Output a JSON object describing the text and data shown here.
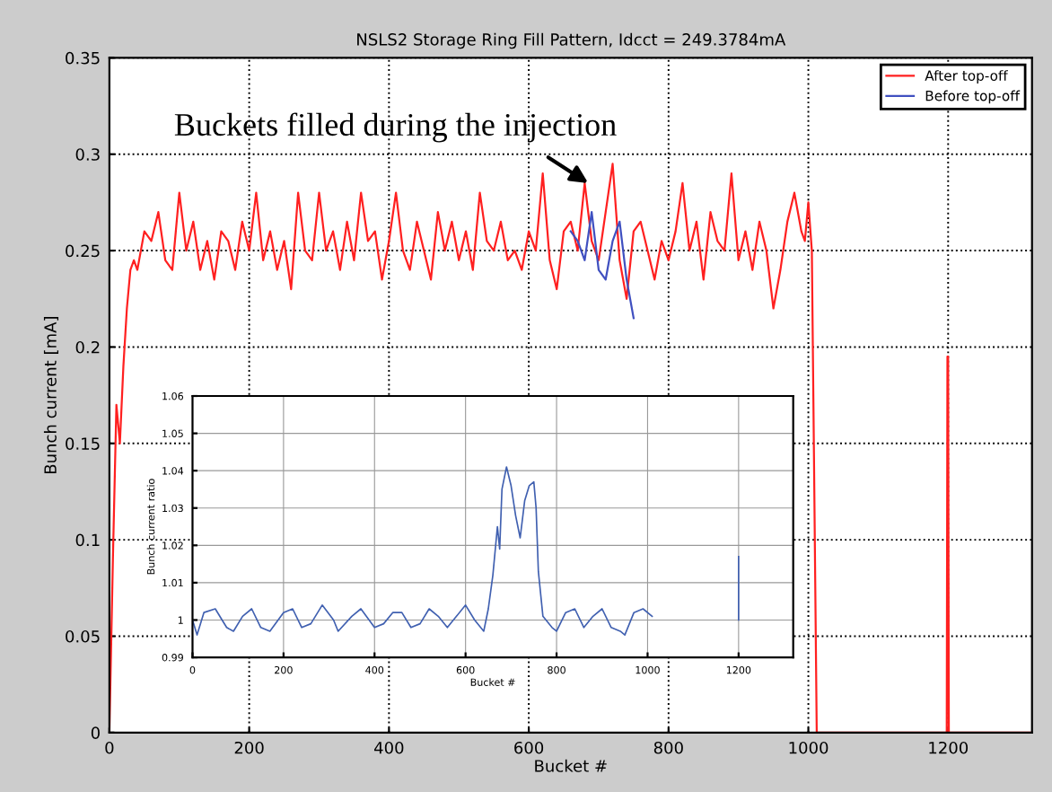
{
  "chart_data": [
    {
      "type": "line",
      "title": "NSLS2 Storage Ring Fill Pattern, Idcct = 249.3784mA",
      "xlabel": "Bucket #",
      "ylabel": "Bunch current [mA]",
      "x": [
        0,
        5,
        10,
        15,
        20,
        25,
        30,
        35,
        40,
        50,
        60,
        70,
        80,
        90,
        100,
        110,
        120,
        130,
        140,
        150,
        160,
        170,
        180,
        190,
        200,
        210,
        220,
        230,
        240,
        250,
        260,
        270,
        280,
        290,
        300,
        310,
        320,
        330,
        340,
        350,
        360,
        370,
        380,
        390,
        400,
        410,
        420,
        430,
        440,
        450,
        460,
        470,
        480,
        490,
        500,
        510,
        520,
        530,
        540,
        550,
        560,
        570,
        580,
        590,
        600,
        610,
        620,
        630,
        640,
        650,
        660,
        670,
        680,
        690,
        700,
        710,
        720,
        730,
        740,
        750,
        760,
        770,
        780,
        790,
        800,
        810,
        820,
        830,
        840,
        850,
        860,
        870,
        880,
        890,
        900,
        910,
        920,
        930,
        940,
        950,
        960,
        970,
        980,
        990,
        995,
        1000,
        1005,
        1008,
        1012,
        1198,
        1199,
        1200,
        1201,
        1320
      ],
      "series": [
        {
          "name": "Before top-off",
          "color": "#4050c0",
          "x": [
            660,
            670,
            680,
            690,
            700,
            710,
            720,
            730,
            740,
            750
          ],
          "values": [
            0.26,
            0.255,
            0.245,
            0.27,
            0.24,
            0.235,
            0.255,
            0.265,
            0.235,
            0.215
          ]
        },
        {
          "name": "After top-off",
          "color": "#ff2020",
          "values": [
            0,
            0.09,
            0.17,
            0.15,
            0.19,
            0.22,
            0.24,
            0.245,
            0.24,
            0.26,
            0.255,
            0.27,
            0.245,
            0.24,
            0.28,
            0.25,
            0.265,
            0.24,
            0.255,
            0.235,
            0.26,
            0.255,
            0.24,
            0.265,
            0.25,
            0.28,
            0.245,
            0.26,
            0.24,
            0.255,
            0.23,
            0.28,
            0.25,
            0.245,
            0.28,
            0.25,
            0.26,
            0.24,
            0.265,
            0.245,
            0.28,
            0.255,
            0.26,
            0.235,
            0.255,
            0.28,
            0.25,
            0.24,
            0.265,
            0.25,
            0.235,
            0.27,
            0.25,
            0.265,
            0.245,
            0.26,
            0.24,
            0.28,
            0.255,
            0.25,
            0.265,
            0.245,
            0.25,
            0.24,
            0.26,
            0.25,
            0.29,
            0.245,
            0.23,
            0.26,
            0.265,
            0.25,
            0.285,
            0.255,
            0.245,
            0.27,
            0.295,
            0.245,
            0.225,
            0.26,
            0.265,
            0.25,
            0.235,
            0.255,
            0.245,
            0.26,
            0.285,
            0.25,
            0.265,
            0.235,
            0.27,
            0.255,
            0.25,
            0.29,
            0.245,
            0.26,
            0.24,
            0.265,
            0.25,
            0.22,
            0.24,
            0.265,
            0.28,
            0.26,
            0.255,
            0.275,
            0.25,
            0.145,
            0,
            0,
            0.195,
            0.195,
            0,
            0
          ]
        }
      ],
      "xlim": [
        0,
        1320
      ],
      "ylim": [
        0,
        0.35
      ],
      "xticks": [
        0,
        200,
        400,
        600,
        800,
        1000,
        1200
      ],
      "yticks": [
        0,
        0.05,
        0.1,
        0.15,
        0.2,
        0.25,
        0.3,
        0.35
      ],
      "grid": true,
      "legend": "top right",
      "line_style": "solid",
      "marker": "none",
      "annotations": [
        {
          "text": "Buckets filled during the injection",
          "x": 685,
          "y": 0.285
        }
      ]
    },
    {
      "type": "line",
      "xlabel": "Bucket #",
      "ylabel": "Bunch current ratio",
      "series": [
        {
          "color": "#4060b0",
          "x": [
            0,
            10,
            25,
            50,
            75,
            90,
            110,
            130,
            150,
            170,
            200,
            220,
            240,
            260,
            285,
            310,
            320,
            350,
            370,
            400,
            420,
            440,
            460,
            480,
            500,
            520,
            540,
            560,
            580,
            600,
            620,
            640,
            650,
            660,
            670,
            675,
            680,
            690,
            700,
            710,
            720,
            730,
            740,
            750,
            755,
            760,
            770,
            790,
            800,
            820,
            840,
            860,
            880,
            900,
            920,
            940,
            950,
            970,
            990,
            1010,
            1100,
            1200,
            1200
          ],
          "values": [
            1.0,
            0.996,
            1.002,
            1.003,
            0.998,
            0.997,
            1.001,
            1.003,
            0.998,
            0.997,
            1.002,
            1.003,
            0.998,
            0.999,
            1.004,
            1.0,
            0.997,
            1.001,
            1.003,
            0.998,
            0.999,
            1.002,
            1.002,
            0.998,
            0.999,
            1.003,
            1.001,
            0.998,
            1.001,
            1.004,
            1.0,
            0.997,
            1.003,
            1.012,
            1.025,
            1.019,
            1.035,
            1.041,
            1.036,
            1.028,
            1.022,
            1.032,
            1.036,
            1.037,
            1.03,
            1.013,
            1.001,
            0.998,
            0.997,
            1.002,
            1.003,
            0.998,
            1.001,
            1.003,
            0.998,
            0.997,
            0.996,
            1.002,
            1.003,
            1.001,
            null,
            1.0,
            1.017
          ]
        }
      ],
      "xlim": [
        0,
        1320
      ],
      "ylim": [
        0.99,
        1.06
      ],
      "xticks": [
        0,
        200,
        400,
        600,
        800,
        1000,
        1200
      ],
      "yticks": [
        0.99,
        1,
        1.01,
        1.02,
        1.03,
        1.04,
        1.05,
        1.06
      ],
      "grid": true,
      "line_style": "solid",
      "marker": "none"
    }
  ]
}
